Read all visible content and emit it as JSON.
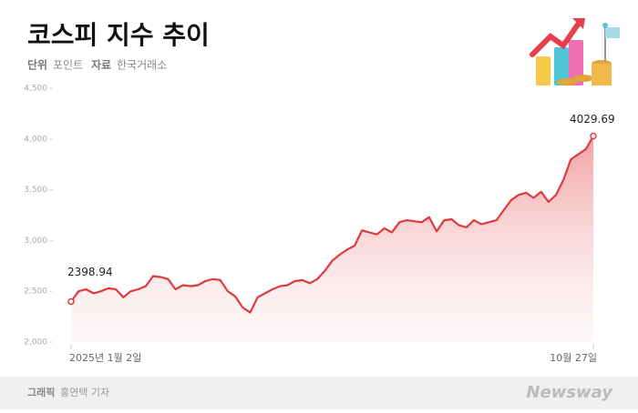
{
  "chart_data": {
    "type": "area-line",
    "title": "코스피 지수 추이",
    "unit_label": "단위",
    "unit": "포인트",
    "source_label": "자료",
    "source": "한국거래소",
    "credit_label": "그래픽",
    "credit": "홍연택 기자",
    "brand": "Newsway",
    "color": "#e03a3e",
    "categories": [
      "2025년 1월 2일",
      null,
      null,
      null,
      null,
      null,
      null,
      null,
      null,
      null,
      null,
      null,
      null,
      null,
      null,
      null,
      null,
      null,
      null,
      null,
      null,
      null,
      null,
      null,
      null,
      null,
      null,
      null,
      null,
      null,
      null,
      null,
      null,
      null,
      null,
      null,
      null,
      null,
      null,
      null,
      null,
      null,
      null,
      null,
      null,
      null,
      null,
      null,
      null,
      null,
      null,
      null,
      null,
      null,
      null,
      null,
      null,
      null,
      null,
      null,
      null,
      null,
      null,
      null,
      null,
      null,
      null,
      null,
      null,
      null,
      "10월 27일"
    ],
    "values": [
      2398.94,
      2500,
      2520,
      2480,
      2500,
      2530,
      2520,
      2440,
      2500,
      2520,
      2550,
      2650,
      2640,
      2620,
      2520,
      2560,
      2550,
      2560,
      2600,
      2620,
      2610,
      2500,
      2450,
      2340,
      2290,
      2440,
      2480,
      2520,
      2550,
      2560,
      2600,
      2610,
      2580,
      2620,
      2700,
      2800,
      2860,
      2910,
      2950,
      3100,
      3080,
      3060,
      3120,
      3080,
      3180,
      3200,
      3190,
      3180,
      3230,
      3090,
      3200,
      3210,
      3150,
      3130,
      3200,
      3160,
      3180,
      3200,
      3300,
      3400,
      3450,
      3470,
      3420,
      3480,
      3380,
      3450,
      3600,
      3800,
      3850,
      3900,
      4029.69
    ],
    "ylim": [
      2000,
      4500
    ],
    "yticks": [
      {
        "value": 2000,
        "label": "2,000"
      },
      {
        "value": 2500,
        "label": "2,500"
      },
      {
        "value": 3000,
        "label": "3,000"
      },
      {
        "value": 3500,
        "label": "3,500"
      },
      {
        "value": 4000,
        "label": "4,000"
      },
      {
        "value": 4500,
        "label": "4,500"
      }
    ],
    "grid": false
  }
}
